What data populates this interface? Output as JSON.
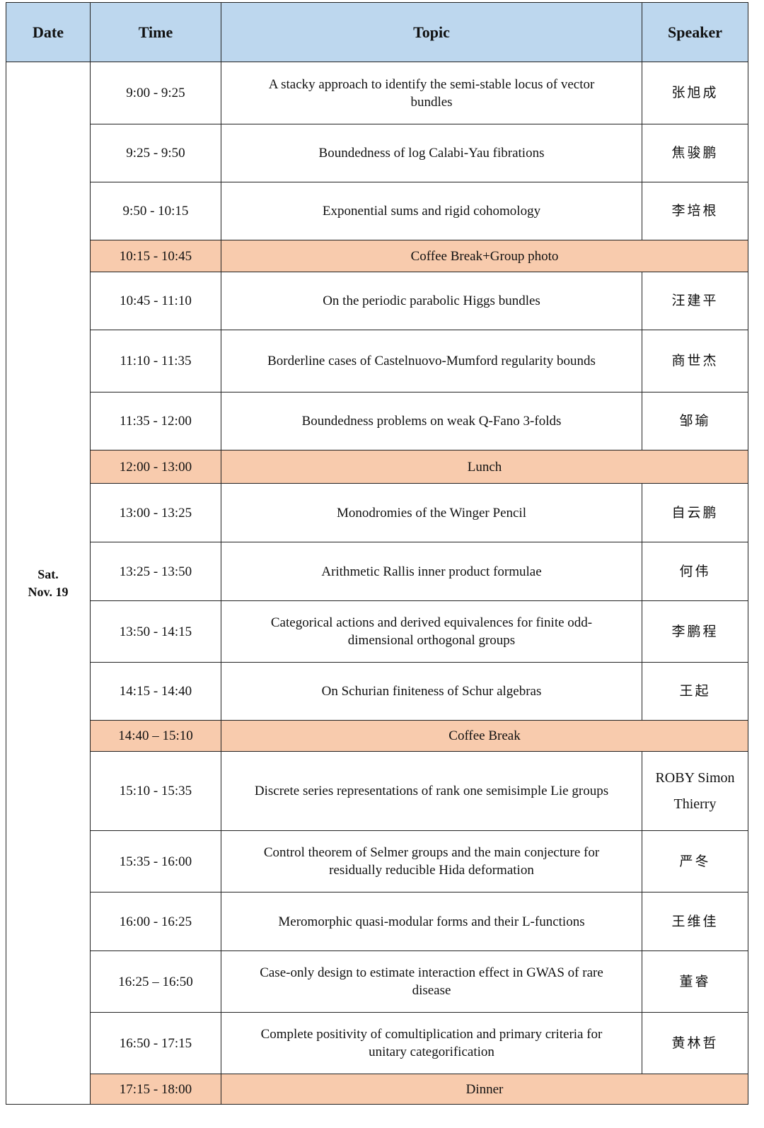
{
  "header": {
    "date": "Date",
    "time": "Time",
    "topic": "Topic",
    "speaker": "Speaker"
  },
  "date": {
    "line1": "Sat.",
    "line2": "Nov. 19"
  },
  "colors": {
    "header_bg": "#bdd7ee",
    "break_bg": "#f8cbad"
  },
  "rows": [
    {
      "time": "9:00 - 9:25",
      "topic": "A stacky approach to identify the semi-stable locus of vector bundles",
      "speaker": "张旭成"
    },
    {
      "time": "9:25 - 9:50",
      "topic": "Boundedness of log Calabi-Yau fibrations",
      "speaker": "焦骏鹏"
    },
    {
      "time": "9:50 - 10:15",
      "topic": "Exponential sums and rigid cohomology",
      "speaker": "李培根"
    },
    {
      "time": "10:15 - 10:45",
      "topic": "Coffee Break+Group photo",
      "break": true
    },
    {
      "time": "10:45 - 11:10",
      "topic": "On the periodic parabolic Higgs bundles",
      "speaker": "汪建平"
    },
    {
      "time": "11:10 - 11:35",
      "topic": "Borderline cases of Castelnuovo-Mumford regularity bounds",
      "speaker": "商世杰"
    },
    {
      "time": "11:35 - 12:00",
      "topic": "Boundedness problems on weak Q-Fano 3-folds",
      "speaker": "邹瑜"
    },
    {
      "time": "12:00 - 13:00",
      "topic": "Lunch",
      "break": true
    },
    {
      "time": "13:00 - 13:25",
      "topic": "Monodromies of the Winger Pencil",
      "speaker": "自云鹏"
    },
    {
      "time": "13:25 - 13:50",
      "topic": "Arithmetic Rallis inner product formulae",
      "speaker": "何伟"
    },
    {
      "time": "13:50 - 14:15",
      "topic": "Categorical actions and derived equivalences for finite odd-dimensional orthogonal groups",
      "speaker": "李鹏程"
    },
    {
      "time": "14:15 - 14:40",
      "topic": "On Schurian finiteness of Schur algebras",
      "speaker": "王起"
    },
    {
      "time": "14:40 – 15:10",
      "topic": "Coffee Break",
      "break": true
    },
    {
      "time": "15:10 - 15:35",
      "topic": "Discrete series representations of rank one semisimple Lie groups",
      "speaker": "ROBY Simon Thierry",
      "latin": true
    },
    {
      "time": "15:35 - 16:00",
      "topic": "Control theorem of Selmer groups and the main conjecture for residually reducible Hida deformation",
      "speaker": "严冬"
    },
    {
      "time": "16:00 - 16:25",
      "topic": "Meromorphic quasi-modular forms and their L-functions",
      "speaker": "王维佳"
    },
    {
      "time": "16:25 – 16:50",
      "topic": "Case-only design to estimate interaction effect in GWAS of rare disease",
      "speaker": "董睿"
    },
    {
      "time": "16:50 - 17:15",
      "topic": "Complete positivity of comultiplication and primary criteria for unitary categorification",
      "speaker": "黄林哲"
    },
    {
      "time": "17:15 - 18:00",
      "topic": "Dinner",
      "break": true
    }
  ]
}
